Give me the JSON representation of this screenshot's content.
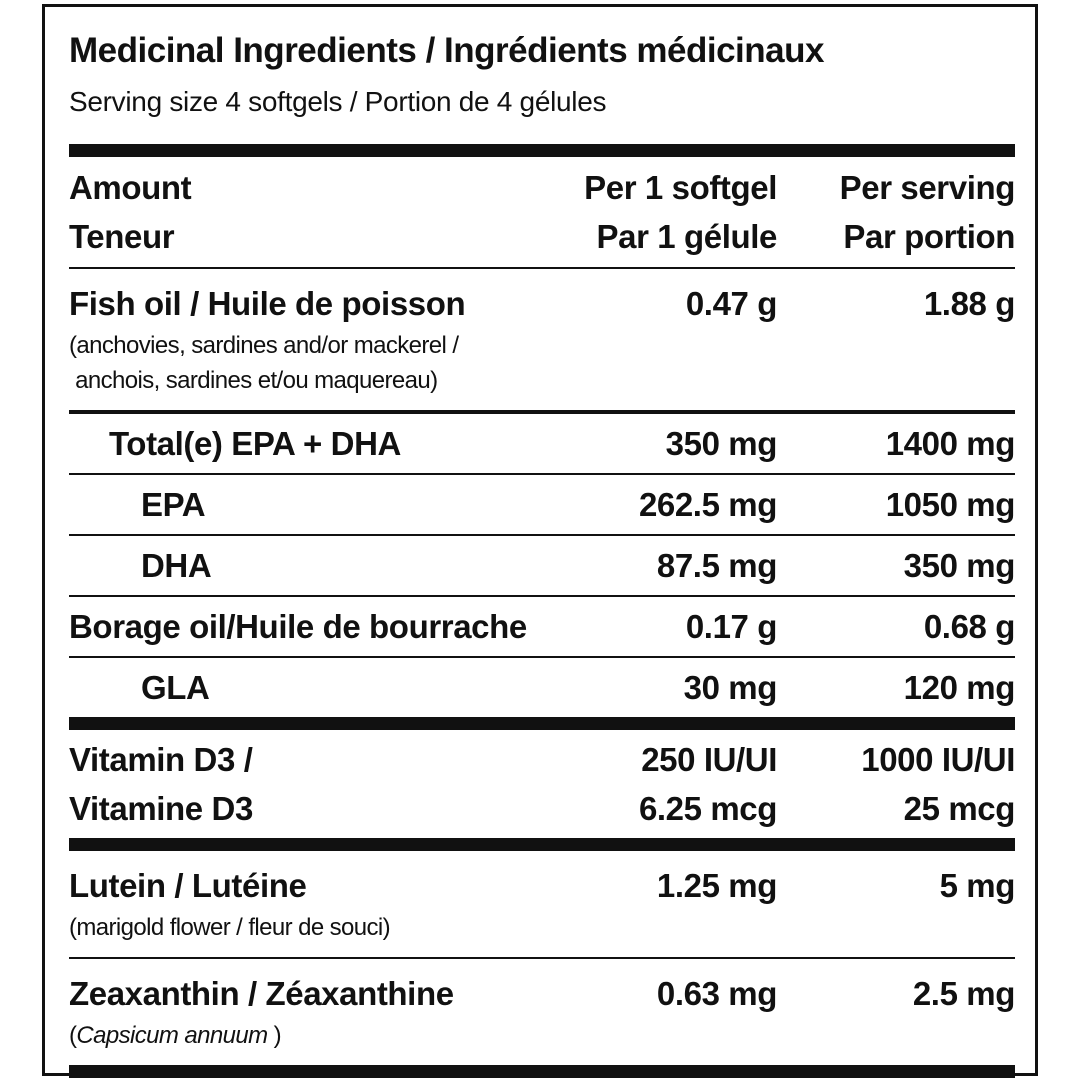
{
  "title": "Medicinal Ingredients / Ingrédients médicinaux",
  "subtitle": "Serving size 4 softgels / Portion de 4 gélules",
  "header": {
    "amount": [
      "Amount",
      "Teneur"
    ],
    "per_softgel": [
      "Per 1 softgel",
      "Par 1 gélule"
    ],
    "per_serving": [
      "Per serving",
      "Par portion"
    ]
  },
  "rows": [
    {
      "name": [
        "Fish oil / Huile de poisson"
      ],
      "note": [
        {
          "text": "(anchovies, sardines and/or mackerel /",
          "italic": false
        },
        {
          "text": " anchois, sardines et/ou maquereau)",
          "italic": false
        }
      ],
      "per_softgel": [
        "0.47 g"
      ],
      "per_serving": [
        "1.88 g"
      ],
      "indent": 0,
      "rule": "medium"
    },
    {
      "name": [
        "Total(e) EPA + DHA"
      ],
      "per_softgel": [
        "350 mg"
      ],
      "per_serving": [
        "1400 mg"
      ],
      "indent": 1,
      "rule": "thin"
    },
    {
      "name": [
        "EPA"
      ],
      "per_softgel": [
        "262.5 mg"
      ],
      "per_serving": [
        "1050 mg"
      ],
      "indent": 2,
      "rule": "thin"
    },
    {
      "name": [
        "DHA"
      ],
      "per_softgel": [
        "87.5 mg"
      ],
      "per_serving": [
        "350 mg"
      ],
      "indent": 2,
      "rule": "thin"
    },
    {
      "name": [
        "Borage oil/Huile de bourrache"
      ],
      "per_softgel": [
        "0.17 g"
      ],
      "per_serving": [
        "0.68 g"
      ],
      "indent": 0,
      "rule": "thin"
    },
    {
      "name": [
        "GLA"
      ],
      "per_softgel": [
        "30 mg"
      ],
      "per_serving": [
        "120 mg"
      ],
      "indent": 2,
      "rule": "thick"
    },
    {
      "name": [
        "Vitamin D3 /",
        "Vitamine D3"
      ],
      "per_softgel": [
        "250 IU/UI",
        "6.25 mcg"
      ],
      "per_serving": [
        "1000 IU/UI",
        "25 mcg"
      ],
      "indent": 0,
      "rule": "thick"
    },
    {
      "name": [
        "Lutein / Lutéine"
      ],
      "note": [
        {
          "text": "(marigold flower / fleur de souci)",
          "italic": false
        }
      ],
      "per_softgel": [
        "1.25 mg"
      ],
      "per_serving": [
        "5 mg"
      ],
      "indent": 0,
      "rule": "thin"
    },
    {
      "name": [
        "Zeaxanthin / Zéaxanthine"
      ],
      "note": [
        {
          "text": "(",
          "italic": false
        },
        {
          "text": "Capsicum annuum",
          "italic": true
        },
        {
          "text": " )",
          "italic": false
        }
      ],
      "per_softgel": [
        "0.63 mg"
      ],
      "per_serving": [
        "2.5 mg"
      ],
      "indent": 0,
      "rule": "thick"
    }
  ]
}
